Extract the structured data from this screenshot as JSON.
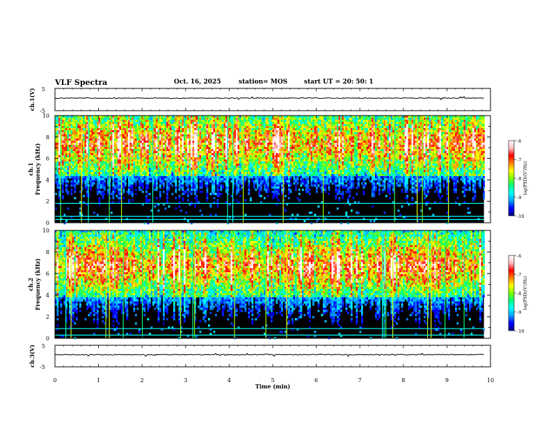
{
  "header": {
    "title": "VLF Spectra",
    "date": "Oct. 16, 2025",
    "station": "station= MOS",
    "start_ut": "start  UT =   20: 50: 1"
  },
  "colorbar": {
    "ticks": [
      "-6",
      "-7",
      "-8",
      "-9",
      "-10"
    ],
    "label": "log(PSD)(V²/Hz)",
    "colors": [
      "#000080",
      "#0000ff",
      "#00a0ff",
      "#00ffff",
      "#00ff80",
      "#80ff00",
      "#ffff00",
      "#ff8000",
      "#ff0000",
      "#ffc0c0",
      "#ffffff"
    ]
  },
  "chart_data": [
    {
      "type": "line",
      "panel": "ch1-waveform",
      "ylabel": "ch.1(V)",
      "ylim": [
        -5,
        5
      ],
      "yticks": [
        "5",
        "-5"
      ],
      "xlim": [
        0,
        10
      ],
      "series": [
        {
          "values_description_level": 0
        }
      ]
    },
    {
      "type": "heatmap",
      "panel": "ch1-spectrogram",
      "ylabel_line1": "ch.1",
      "ylabel_line2": "Frequency (kHz)",
      "ylim": [
        0,
        10
      ],
      "yticks": [
        "10",
        "8",
        "6",
        "4",
        "2",
        "0"
      ],
      "xlim": [
        0,
        10
      ],
      "color_range": [
        -10,
        -6
      ],
      "band_center_khz": 7.5,
      "band_low_khz": 4.5,
      "band_high_khz": 10,
      "lines_khz": [
        1.8,
        0.6,
        0.3
      ]
    },
    {
      "type": "heatmap",
      "panel": "ch2-spectrogram",
      "ylabel_line1": "ch.2",
      "ylabel_line2": "Frequency (kHz)",
      "ylim": [
        0,
        10
      ],
      "yticks": [
        "10",
        "8",
        "6",
        "4",
        "2",
        "0"
      ],
      "xlim": [
        0,
        10
      ],
      "color_range": [
        -10,
        -6
      ],
      "band_center_khz": 6.8,
      "band_low_khz": 4,
      "band_high_khz": 10,
      "lines_khz": [
        0.9,
        0.3
      ]
    },
    {
      "type": "line",
      "panel": "ch3-waveform",
      "ylabel": "ch.3(V)",
      "ylim": [
        -5,
        5
      ],
      "yticks": [
        "5",
        "-5"
      ],
      "xlim": [
        0,
        10
      ],
      "series": [
        {
          "values_description_level": 0
        }
      ]
    }
  ],
  "xaxis": {
    "label": "Time (min)",
    "ticks": [
      "0",
      "1",
      "2",
      "3",
      "4",
      "5",
      "6",
      "7",
      "8",
      "9",
      "10"
    ],
    "max": 10,
    "data_end": 9.85
  }
}
